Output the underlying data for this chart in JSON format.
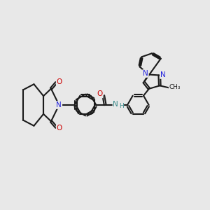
{
  "bg_color": "#e8e8e8",
  "bond_color": "#1a1a1a",
  "N_color": "#2222dd",
  "O_color": "#cc0000",
  "NH_color": "#3a8a8a",
  "C_color": "#1a1a1a",
  "lw": 1.5,
  "doff": 0.055,
  "fs": 7.5,
  "figsize": [
    3.0,
    3.0
  ],
  "dpi": 100,
  "xlim": [
    -1.0,
    11.0
  ],
  "ylim": [
    1.5,
    8.5
  ]
}
